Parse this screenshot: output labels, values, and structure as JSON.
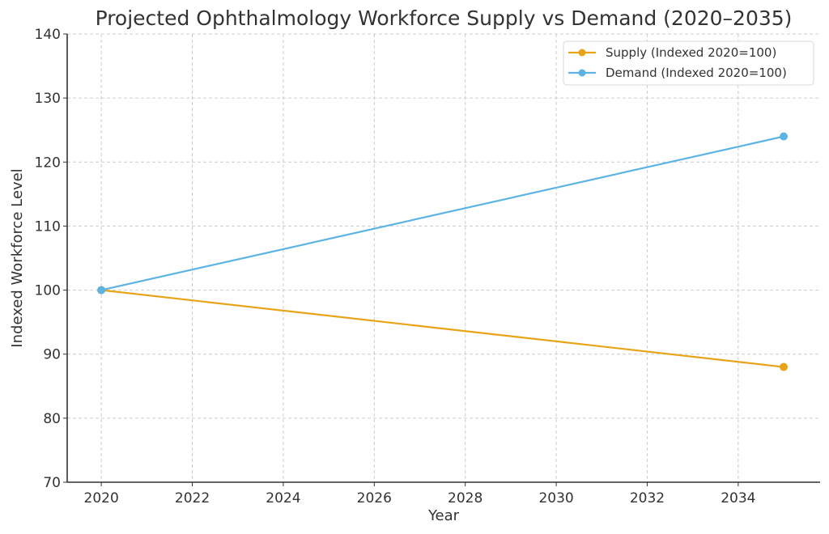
{
  "chart_data": {
    "type": "line",
    "title": "Projected Ophthalmology Workforce Supply vs Demand (2020–2035)",
    "xlabel": "Year",
    "ylabel": "Indexed Workforce Level",
    "xlim": [
      2019.25,
      2035.8
    ],
    "ylim": [
      70,
      140
    ],
    "xticks": [
      2020,
      2022,
      2024,
      2026,
      2028,
      2030,
      2032,
      2034
    ],
    "yticks": [
      70,
      80,
      90,
      100,
      110,
      120,
      130,
      140
    ],
    "grid": true,
    "legend_position": "top-right",
    "series": [
      {
        "name": "Supply (Indexed 2020=100)",
        "color": "#E8A317",
        "x": [
          2020,
          2035
        ],
        "y": [
          100,
          88
        ]
      },
      {
        "name": "Demand (Indexed 2020=100)",
        "color": "#5DB4E3",
        "x": [
          2020,
          2035
        ],
        "y": [
          100,
          124
        ]
      }
    ]
  }
}
